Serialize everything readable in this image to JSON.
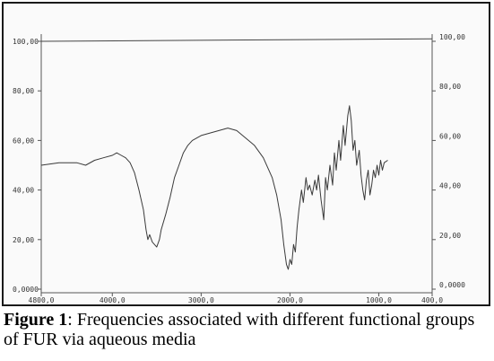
{
  "caption": {
    "label": "Figure 1",
    "text": ": Frequencies associated with different functional groups of FUR via aqueous media"
  },
  "chart_data": {
    "type": "line",
    "title": "",
    "xlabel": "",
    "ylabel": "",
    "x_reversed": true,
    "xlim": [
      4800,
      400
    ],
    "ylim": [
      0,
      100
    ],
    "grid": false,
    "x_ticks": [
      {
        "value": 4800,
        "label": "4800,0"
      },
      {
        "value": 4000,
        "label": "4000,0"
      },
      {
        "value": 3000,
        "label": "3000,0"
      },
      {
        "value": 2000,
        "label": "2000,0"
      },
      {
        "value": 1000,
        "label": "1000,0"
      },
      {
        "value": 400,
        "label": "400,0"
      }
    ],
    "y_ticks_left": [
      {
        "value": 100,
        "label": "100,00"
      },
      {
        "value": 80,
        "label": "80,00"
      },
      {
        "value": 60,
        "label": "60,00"
      },
      {
        "value": 40,
        "label": "40,00"
      },
      {
        "value": 20,
        "label": "20,00"
      },
      {
        "value": 0,
        "label": "0,0000"
      }
    ],
    "y_ticks_right": [
      {
        "value": 100,
        "label": "100,00"
      },
      {
        "value": 80,
        "label": "80,00"
      },
      {
        "value": 60,
        "label": "60,00"
      },
      {
        "value": 40,
        "label": "40,00"
      },
      {
        "value": 20,
        "label": "20,00"
      },
      {
        "value": 0,
        "label": "0,0000"
      }
    ],
    "reference_line": [
      [
        4800,
        100
      ],
      [
        400,
        101
      ]
    ],
    "series": [
      {
        "color": "#3a3a3a",
        "points": [
          [
            4800,
            50
          ],
          [
            4600,
            51
          ],
          [
            4400,
            51
          ],
          [
            4300,
            50
          ],
          [
            4200,
            52
          ],
          [
            4100,
            53
          ],
          [
            4000,
            54
          ],
          [
            3950,
            55
          ],
          [
            3900,
            54
          ],
          [
            3850,
            53
          ],
          [
            3800,
            51
          ],
          [
            3750,
            47
          ],
          [
            3700,
            40
          ],
          [
            3650,
            32
          ],
          [
            3620,
            24
          ],
          [
            3600,
            20
          ],
          [
            3580,
            22
          ],
          [
            3550,
            19
          ],
          [
            3500,
            17
          ],
          [
            3470,
            20
          ],
          [
            3450,
            24
          ],
          [
            3400,
            30
          ],
          [
            3350,
            37
          ],
          [
            3300,
            45
          ],
          [
            3250,
            50
          ],
          [
            3200,
            55
          ],
          [
            3150,
            58
          ],
          [
            3100,
            60
          ],
          [
            3000,
            62
          ],
          [
            2900,
            63
          ],
          [
            2800,
            64
          ],
          [
            2700,
            65
          ],
          [
            2600,
            64
          ],
          [
            2500,
            61
          ],
          [
            2400,
            58
          ],
          [
            2300,
            53
          ],
          [
            2200,
            45
          ],
          [
            2150,
            38
          ],
          [
            2100,
            28
          ],
          [
            2070,
            18
          ],
          [
            2040,
            10
          ],
          [
            2020,
            8
          ],
          [
            2000,
            12
          ],
          [
            1980,
            10
          ],
          [
            1960,
            18
          ],
          [
            1940,
            15
          ],
          [
            1920,
            25
          ],
          [
            1900,
            32
          ],
          [
            1870,
            40
          ],
          [
            1850,
            35
          ],
          [
            1820,
            45
          ],
          [
            1800,
            40
          ],
          [
            1780,
            42
          ],
          [
            1750,
            38
          ],
          [
            1720,
            44
          ],
          [
            1700,
            40
          ],
          [
            1680,
            46
          ],
          [
            1650,
            36
          ],
          [
            1620,
            28
          ],
          [
            1600,
            45
          ],
          [
            1580,
            40
          ],
          [
            1550,
            50
          ],
          [
            1520,
            42
          ],
          [
            1500,
            55
          ],
          [
            1480,
            48
          ],
          [
            1450,
            60
          ],
          [
            1430,
            52
          ],
          [
            1400,
            66
          ],
          [
            1380,
            58
          ],
          [
            1350,
            70
          ],
          [
            1330,
            74
          ],
          [
            1310,
            68
          ],
          [
            1290,
            56
          ],
          [
            1270,
            60
          ],
          [
            1250,
            50
          ],
          [
            1220,
            56
          ],
          [
            1200,
            46
          ],
          [
            1180,
            40
          ],
          [
            1160,
            36
          ],
          [
            1140,
            44
          ],
          [
            1120,
            48
          ],
          [
            1100,
            38
          ],
          [
            1080,
            42
          ],
          [
            1060,
            48
          ],
          [
            1040,
            45
          ],
          [
            1020,
            50
          ],
          [
            1000,
            46
          ],
          [
            980,
            52
          ],
          [
            960,
            48
          ],
          [
            940,
            51
          ],
          [
            900,
            52
          ]
        ]
      }
    ]
  }
}
